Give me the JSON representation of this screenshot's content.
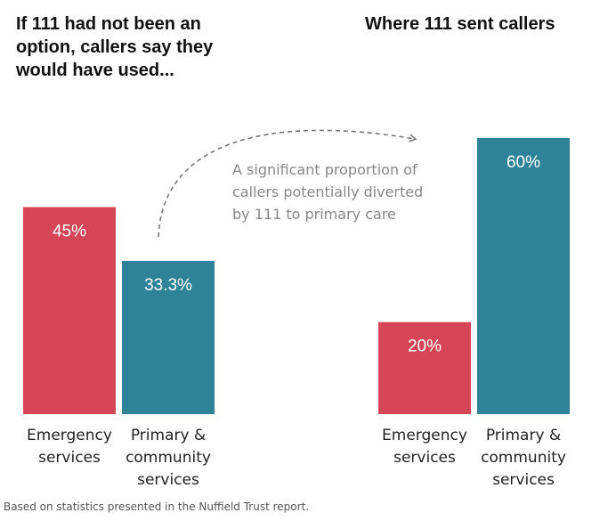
{
  "chart_data": [
    {
      "type": "bar",
      "title": "If 111 had not been an option, callers say they would have used...",
      "categories": [
        [
          "Emergency",
          "services"
        ],
        [
          "Primary &",
          "community",
          "services"
        ]
      ],
      "values": [
        45,
        33.3
      ],
      "value_labels": [
        "45%",
        "33.3%"
      ],
      "colors": [
        "#d64556",
        "#2f8399"
      ],
      "ylim": [
        0,
        60
      ],
      "xlabel": "",
      "ylabel": ""
    },
    {
      "type": "bar",
      "title": "Where 111 sent callers",
      "categories": [
        [
          "Emergency",
          "services"
        ],
        [
          "Primary &",
          "community",
          "services"
        ]
      ],
      "values": [
        20,
        60
      ],
      "value_labels": [
        "20%",
        "60%"
      ],
      "colors": [
        "#d64556",
        "#2f8399"
      ],
      "ylim": [
        0,
        60
      ],
      "xlabel": "",
      "ylabel": ""
    }
  ],
  "annotation": {
    "lines": [
      "A significant proportion of",
      "callers potentially diverted",
      "by 111 to primary care"
    ]
  },
  "footnote": "Based on statistics presented in the Nuffield Trust report."
}
